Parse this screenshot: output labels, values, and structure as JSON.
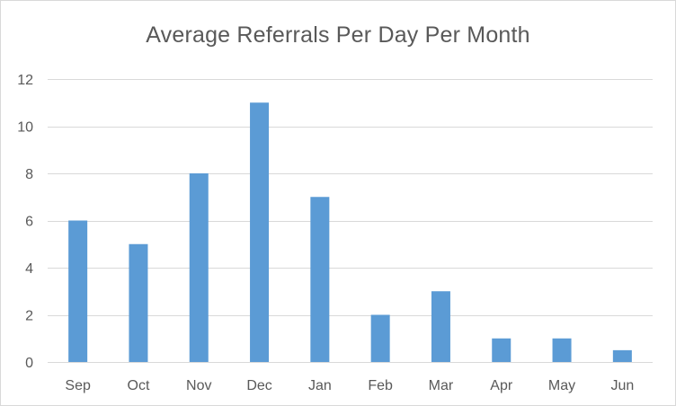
{
  "chart_data": {
    "type": "bar",
    "title": "Average Referrals Per Day Per Month",
    "xlabel": "",
    "ylabel": "",
    "categories": [
      "Sep",
      "Oct",
      "Nov",
      "Dec",
      "Jan",
      "Feb",
      "Mar",
      "Apr",
      "May",
      "Jun"
    ],
    "values": [
      6,
      5,
      8,
      11,
      7,
      2,
      3,
      1,
      1,
      0.5
    ],
    "ylim": [
      0,
      12
    ],
    "yticks": [
      0,
      2,
      4,
      6,
      8,
      10,
      12
    ],
    "grid": true,
    "legend": "none",
    "colors": {
      "bar": "#5b9bd5",
      "grid": "#d9d9d9",
      "text": "#595959"
    }
  }
}
